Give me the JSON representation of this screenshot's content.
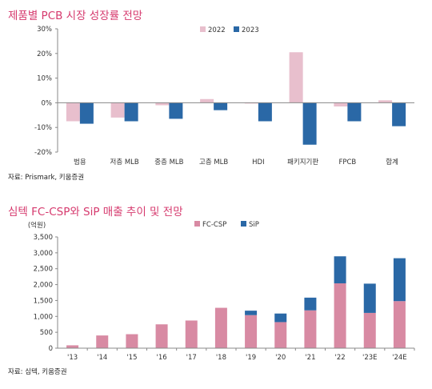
{
  "charts": [
    {
      "title": "제품별 PCB 시장 성장률 전망",
      "source": "자료: Prismark, 키움증권"
    },
    {
      "title": "심텍 FC-CSP와 SiP 매출 추이 및 전망",
      "source": "자료: 심텍, 키움증권"
    }
  ],
  "chart_data": [
    {
      "type": "bar",
      "title": "제품별 PCB 시장 성장률 전망",
      "categories": [
        "범용",
        "저층 MLB",
        "중층 MLB",
        "고층 MLB",
        "HDI",
        "패키지기판",
        "FPCB",
        "합계"
      ],
      "series": [
        {
          "name": "2022",
          "values": [
            -7.5,
            -6,
            -1,
            1.5,
            -0.3,
            20.5,
            -1.5,
            1
          ],
          "color": "#e8bfcd"
        },
        {
          "name": "2023",
          "values": [
            -8.5,
            -7.5,
            -6.5,
            -3,
            -7.5,
            -17,
            -7.5,
            -9.5
          ],
          "color": "#2a68a6"
        }
      ],
      "ylim": [
        -20,
        30
      ],
      "yticks": [
        -20,
        -10,
        0,
        10,
        20,
        30
      ],
      "ytick_labels": [
        "-20%",
        "-10%",
        "0%",
        "10%",
        "20%",
        "30%"
      ],
      "legend": "top-right",
      "grid": false
    },
    {
      "type": "bar",
      "stacked": true,
      "title": "심텍 FC-CSP와 SiP 매출 추이 및 전망",
      "ylabel": "(억원)",
      "categories": [
        "'13",
        "'14",
        "'15",
        "'16",
        "'17",
        "'18",
        "'19",
        "'20",
        "'21",
        "'22",
        "'23E",
        "'24E"
      ],
      "series": [
        {
          "name": "FC-CSP",
          "values": [
            90,
            400,
            440,
            750,
            870,
            1270,
            1040,
            820,
            1190,
            2040,
            1110,
            1480
          ],
          "color": "#d88aa3"
        },
        {
          "name": "SiP",
          "values": [
            0,
            0,
            0,
            0,
            0,
            0,
            140,
            270,
            400,
            850,
            920,
            1350
          ],
          "color": "#2a68a6"
        }
      ],
      "ylim": [
        0,
        3500
      ],
      "yticks": [
        0,
        500,
        1000,
        1500,
        2000,
        2500,
        3000,
        3500
      ],
      "ytick_labels": [
        "0",
        "500",
        "1,000",
        "1,500",
        "2,000",
        "2,500",
        "3,000",
        "3,500"
      ],
      "legend": "top-center",
      "grid": false
    }
  ]
}
